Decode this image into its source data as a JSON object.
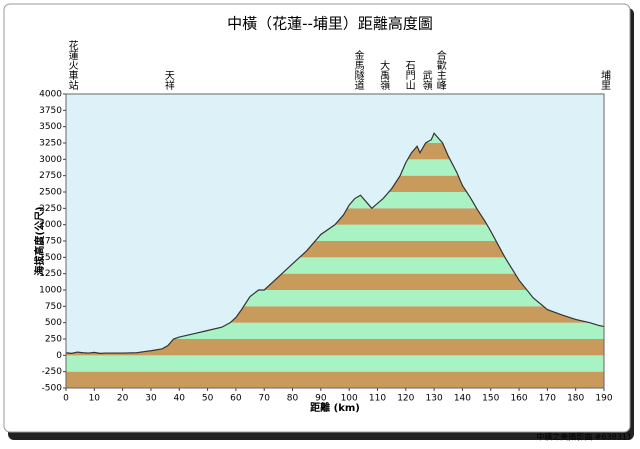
{
  "chart_data": {
    "type": "area",
    "title": "中橫（花蓮--埔里）距離高度圖",
    "x_label": "距離 (km)",
    "y_label": "海拔高度(公尺)",
    "watermark": "中橫之美攝影曲 #638311",
    "x": [
      0,
      2,
      4,
      6,
      8,
      10,
      12,
      14,
      20,
      25,
      28,
      30,
      34,
      36,
      38,
      40,
      45,
      50,
      55,
      58,
      60,
      62,
      65,
      68,
      70,
      75,
      80,
      85,
      90,
      95,
      98,
      100,
      102,
      104,
      107,
      108,
      112,
      115,
      118,
      120,
      122,
      124,
      125,
      127,
      129,
      130,
      131,
      133,
      135,
      138,
      140,
      143,
      145,
      148,
      150,
      155,
      160,
      165,
      170,
      175,
      180,
      185,
      188,
      190
    ],
    "y": [
      40,
      30,
      50,
      40,
      35,
      45,
      30,
      35,
      35,
      40,
      60,
      70,
      100,
      150,
      250,
      280,
      330,
      380,
      430,
      500,
      580,
      700,
      900,
      1000,
      1000,
      1200,
      1400,
      1600,
      1850,
      2000,
      2150,
      2300,
      2400,
      2450,
      2300,
      2250,
      2400,
      2550,
      2750,
      2950,
      3100,
      3200,
      3100,
      3250,
      3300,
      3400,
      3350,
      3250,
      3050,
      2800,
      2600,
      2400,
      2250,
      2050,
      1900,
      1500,
      1150,
      880,
      700,
      620,
      550,
      500,
      460,
      440
    ],
    "landmarks": [
      {
        "name": "花蓮火車站",
        "x": 2
      },
      {
        "name": "天祥",
        "x": 36
      },
      {
        "name": "金馬隧道",
        "x": 103
      },
      {
        "name": "大禹嶺",
        "x": 112
      },
      {
        "name": "石門山",
        "x": 121
      },
      {
        "name": "武嶺",
        "x": 127
      },
      {
        "name": "合歡主峰",
        "x": 132
      },
      {
        "name": "埔里",
        "x": 190
      }
    ],
    "xlim": [
      0,
      190
    ],
    "xticks": [
      0,
      10,
      20,
      30,
      40,
      50,
      60,
      70,
      80,
      90,
      100,
      110,
      120,
      130,
      140,
      150,
      160,
      170,
      180,
      190
    ],
    "ylim": [
      -500,
      4000
    ],
    "yticks": [
      -500,
      -250,
      0,
      250,
      500,
      750,
      1000,
      1250,
      1500,
      1750,
      2000,
      2250,
      2500,
      2750,
      3000,
      3250,
      3500,
      3750,
      4000
    ],
    "line_color": "#333333",
    "band_colors": [
      "#c89a5c",
      "#a8f2c4"
    ],
    "background": "#dcf2f8"
  }
}
